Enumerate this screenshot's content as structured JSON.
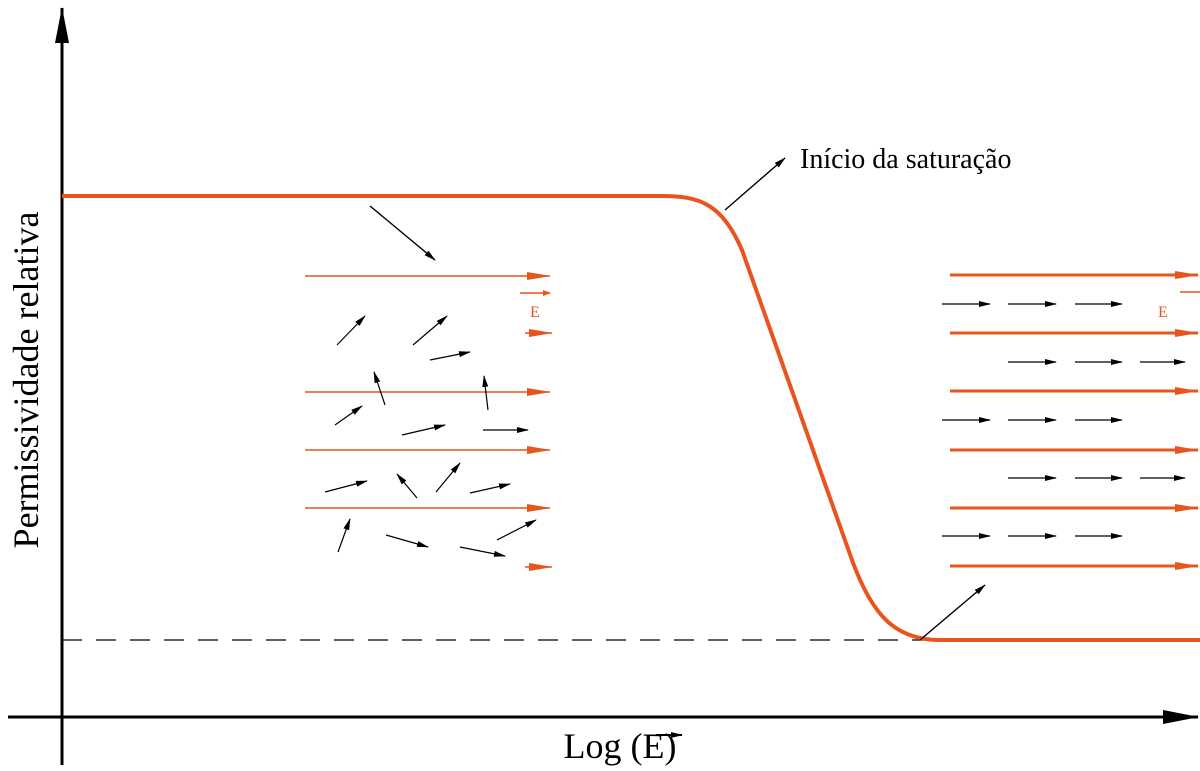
{
  "axes": {
    "y_label": "Permissividade relativa",
    "x_label": "Log (E)"
  },
  "annotation": "Início da saturação",
  "field_labels": [
    "E",
    "E"
  ]
}
